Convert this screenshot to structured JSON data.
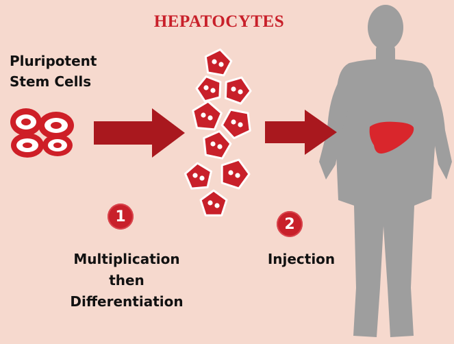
{
  "title": "HEPATOCYTES",
  "stem_cells": {
    "line1": "Pluripotent",
    "line2": "Stem Cells"
  },
  "steps": [
    {
      "number": "1",
      "lines": [
        "Multiplication",
        "then",
        "Differentiation"
      ]
    },
    {
      "number": "2",
      "lines": [
        "Injection"
      ]
    }
  ],
  "colors": {
    "background": "#f6d9ce",
    "accent": "#c8202a",
    "arrow": "#a9181e",
    "body": "#9e9e9e",
    "liver": "#d9262c"
  }
}
